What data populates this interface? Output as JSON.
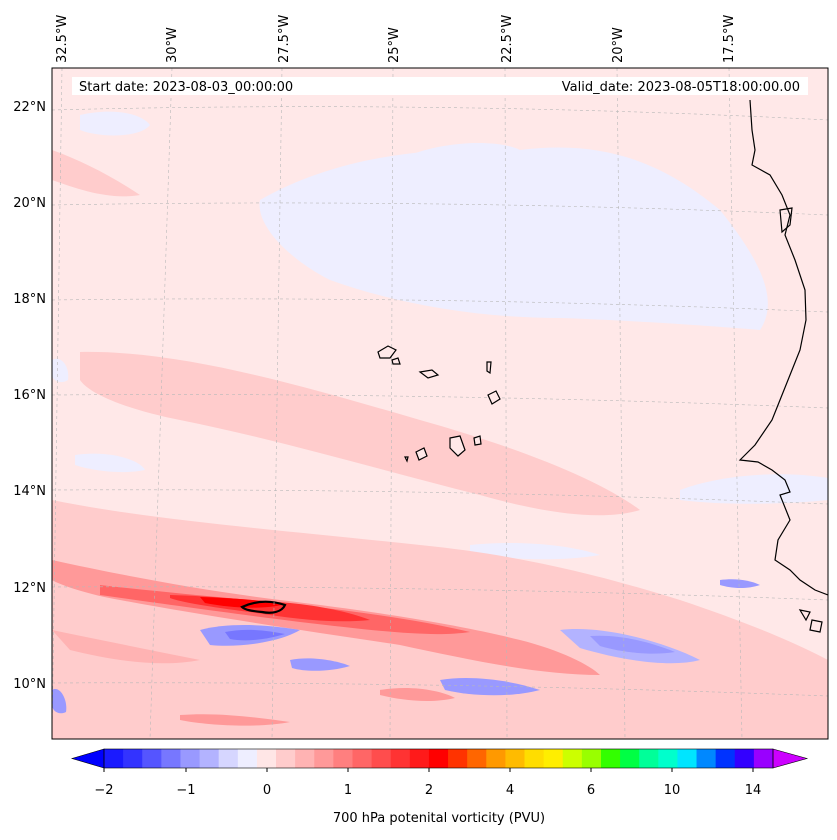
{
  "header": {
    "start_date": "Start date: 2023-08-03_00:00:00",
    "valid_date": "Valid_date: 2023-08-05T18:00:00.00"
  },
  "longitude_labels": [
    "32.5°W",
    "30°W",
    "27.5°W",
    "25°W",
    "22.5°W",
    "20°W",
    "17.5°W"
  ],
  "latitude_labels": [
    "22°N",
    "20°N",
    "18°N",
    "16°N",
    "14°N",
    "12°N",
    "10°N"
  ],
  "colorbar": {
    "label": "700 hPa potenital vorticity (PVU)",
    "tick_labels": [
      "−2",
      "−1",
      "0",
      "1",
      "2",
      "4",
      "6",
      "10",
      "14"
    ],
    "colors": [
      "#1a1aff",
      "#3333ff",
      "#5555ff",
      "#7777ff",
      "#9999ff",
      "#b3b3ff",
      "#d6d6ff",
      "#eeeeff",
      "#ffe6e6",
      "#ffcccc",
      "#ffb3b3",
      "#ff9999",
      "#ff7f7f",
      "#ff6666",
      "#ff4d4d",
      "#ff3333",
      "#ff1a1a",
      "#ff0000",
      "#ff3300",
      "#ff6600",
      "#ff9900",
      "#ffbb00",
      "#ffdd00",
      "#ffee00",
      "#ccff00",
      "#99ff00",
      "#33ff00",
      "#00ff44",
      "#00ff99",
      "#00ffcc",
      "#00e5ff",
      "#0088ff",
      "#0033ff",
      "#3300ff",
      "#9900ff"
    ]
  },
  "colors": {
    "background_field": "#ffe8e8",
    "light_blue_field": "#eeeeff",
    "coast": "#000000"
  }
}
